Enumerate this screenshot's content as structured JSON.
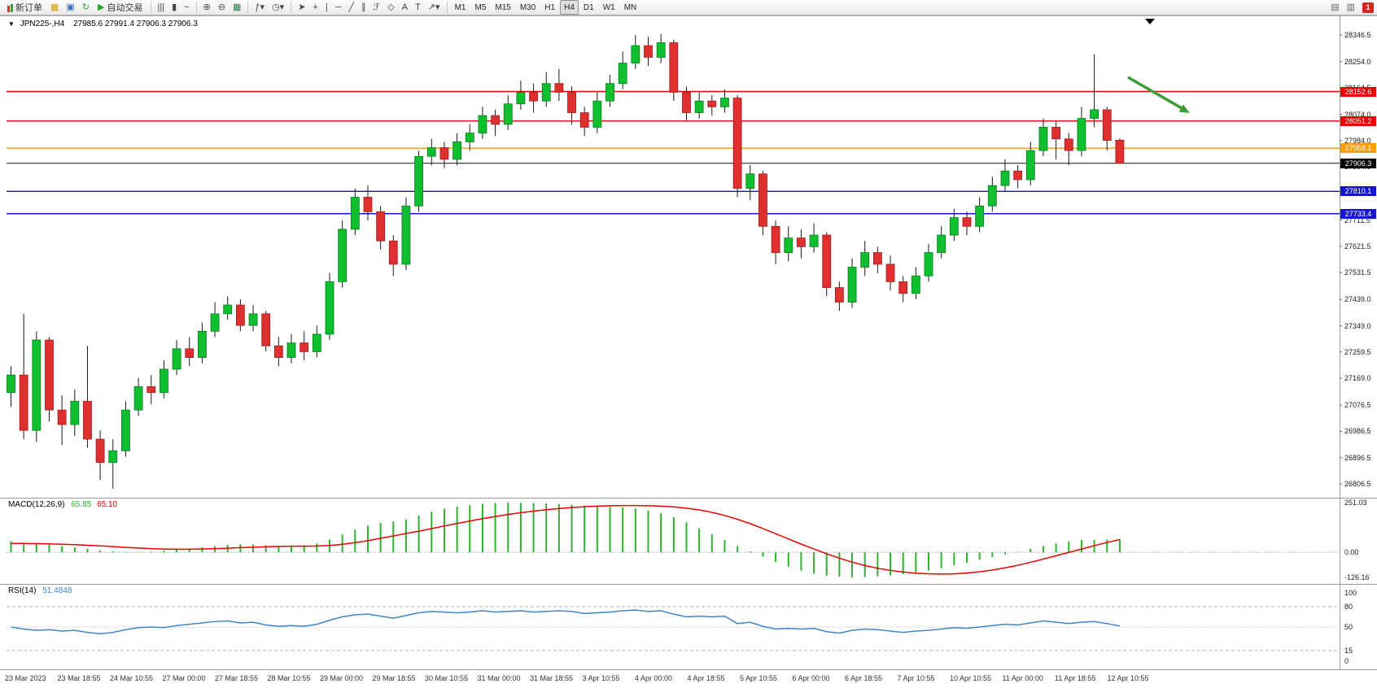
{
  "toolbar": {
    "new_order_label": "新订单",
    "auto_trading_label": "自动交易",
    "timeframes": [
      "M1",
      "M5",
      "M15",
      "M30",
      "H1",
      "H4",
      "D1",
      "W1",
      "MN"
    ],
    "active_timeframe": "H4",
    "notification_badge": "1",
    "left_icons": [
      {
        "name": "charts-icon",
        "glyph": "▦",
        "color": "#d89c00"
      },
      {
        "name": "profiles-icon",
        "glyph": "▣",
        "color": "#3e6fbd"
      },
      {
        "name": "refresh-icon",
        "glyph": "↻",
        "color": "#2fa32f"
      }
    ],
    "chart_type_icons": [
      {
        "name": "bar-chart-icon",
        "glyph": "|||",
        "color": "#444444"
      },
      {
        "name": "candlestick-chart-icon",
        "glyph": "▮",
        "color": "#444444"
      },
      {
        "name": "line-chart-icon",
        "glyph": "~",
        "color": "#444444"
      }
    ],
    "zoom_icons": [
      {
        "name": "zoom-in-icon",
        "glyph": "⊕",
        "color": "#444444"
      },
      {
        "name": "zoom-out-icon",
        "glyph": "⊖",
        "color": "#444444"
      },
      {
        "name": "tile-windows-icon",
        "glyph": "▦",
        "color": "#2f7d4f"
      }
    ],
    "dropdown_icons": [
      {
        "name": "indicators-dropdown",
        "glyph": "ƒ▾",
        "color": "#444444"
      },
      {
        "name": "periods-dropdown",
        "glyph": "◷▾",
        "color": "#444444"
      }
    ],
    "drawing_icons": [
      {
        "name": "cursor-icon",
        "glyph": "➤",
        "color": "#444444"
      },
      {
        "name": "crosshair-icon",
        "glyph": "+",
        "color": "#444444"
      },
      {
        "name": "vertical-line-icon",
        "glyph": "|",
        "color": "#444444"
      },
      {
        "name": "horizontal-line-icon",
        "glyph": "─",
        "color": "#444444"
      },
      {
        "name": "trendline-icon",
        "glyph": "╱",
        "color": "#444444"
      },
      {
        "name": "channel-icon",
        "glyph": "∥",
        "color": "#444444"
      },
      {
        "name": "fibonacci-icon",
        "glyph": "ℱ",
        "color": "#444444"
      },
      {
        "name": "shapes-icon",
        "glyph": "◇",
        "color": "#444444"
      },
      {
        "name": "text-icon",
        "glyph": "A",
        "color": "#444444"
      },
      {
        "name": "text-label-icon",
        "glyph": "T",
        "color": "#444444"
      },
      {
        "name": "arrows-icon",
        "glyph": "↗▾",
        "color": "#444444"
      }
    ],
    "right_icons": [
      {
        "name": "data-window-icon",
        "glyph": "▤",
        "color": "#666666"
      },
      {
        "name": "depth-of-market-icon",
        "glyph": "▥",
        "color": "#666666"
      }
    ]
  },
  "chart_data": {
    "type": "candlestick",
    "symbol": "JPN225-",
    "period": "H4",
    "title": "JPN225-,H4",
    "ohlc_text": "27985.6 27991.4 27906.3 27906.3",
    "last": {
      "open": 27985.6,
      "high": 27991.4,
      "low": 27906.3,
      "close": 27906.3
    },
    "bid_price": 27906.3,
    "ylim": [
      26759,
      28382
    ],
    "price_axis_labels": [
      "28346.5",
      "28254.0",
      "28164.5",
      "28074.0",
      "27984.0",
      "27894.0",
      "27801.5",
      "27711.5",
      "27621.5",
      "27531.5",
      "27439.0",
      "27349.0",
      "27259.5",
      "27169.0",
      "27076.5",
      "26986.5",
      "26896.5",
      "26806.5"
    ],
    "time_labels": [
      "23 Mar 2023",
      "23 Mar 18:55",
      "24 Mar 10:55",
      "27 Mar 00:00",
      "27 Mar 18:55",
      "28 Mar 10:55",
      "29 Mar 00:00",
      "29 Mar 18:55",
      "30 Mar 10:55",
      "31 Mar 00:00",
      "31 Mar 18:55",
      "3 Apr 10:55",
      "4 Apr 00:00",
      "4 Apr 18:55",
      "5 Apr 10:55",
      "6 Apr 00:00",
      "6 Apr 18:55",
      "7 Apr 10:55",
      "10 Apr 10:55",
      "11 Apr 00:00",
      "11 Apr 18:55",
      "12 Apr 10:55"
    ],
    "horizontal_lines": [
      {
        "price": 28152.6,
        "color": "#e80000",
        "style": "solid"
      },
      {
        "price": 28051.2,
        "color": "#e80000",
        "style": "solid"
      },
      {
        "price": 27958.1,
        "color": "#ff9c00",
        "style": "solid"
      },
      {
        "price": 27810.1,
        "color": "#1515d0",
        "style": "solid"
      },
      {
        "price": 27733.4,
        "color": "#1515d0",
        "style": "solid"
      }
    ],
    "colors": {
      "up": "#0fbf2f",
      "down": "#df2f2f",
      "wick": "#1a1a1a",
      "up_border": "#077d1d",
      "down_border": "#9c1f1f"
    },
    "candles": [
      [
        27120,
        27210,
        27070,
        27180
      ],
      [
        27180,
        27390,
        26960,
        26990
      ],
      [
        26990,
        27330,
        26950,
        27300
      ],
      [
        27300,
        27310,
        27020,
        27060
      ],
      [
        27060,
        27110,
        26940,
        27010
      ],
      [
        27010,
        27130,
        26970,
        27090
      ],
      [
        27090,
        27280,
        26930,
        26960
      ],
      [
        26960,
        26990,
        26820,
        26880
      ],
      [
        26880,
        26960,
        26790,
        26920
      ],
      [
        26920,
        27090,
        26900,
        27060
      ],
      [
        27060,
        27170,
        27040,
        27140
      ],
      [
        27140,
        27180,
        27080,
        27120
      ],
      [
        27120,
        27230,
        27100,
        27200
      ],
      [
        27200,
        27300,
        27180,
        27270
      ],
      [
        27270,
        27310,
        27210,
        27240
      ],
      [
        27240,
        27360,
        27220,
        27330
      ],
      [
        27330,
        27430,
        27310,
        27390
      ],
      [
        27390,
        27450,
        27370,
        27420
      ],
      [
        27420,
        27440,
        27330,
        27350
      ],
      [
        27350,
        27420,
        27330,
        27390
      ],
      [
        27390,
        27400,
        27260,
        27280
      ],
      [
        27280,
        27310,
        27210,
        27240
      ],
      [
        27240,
        27320,
        27220,
        27290
      ],
      [
        27290,
        27330,
        27230,
        27260
      ],
      [
        27260,
        27350,
        27240,
        27320
      ],
      [
        27320,
        27530,
        27300,
        27500
      ],
      [
        27500,
        27710,
        27480,
        27680
      ],
      [
        27680,
        27820,
        27660,
        27790
      ],
      [
        27790,
        27830,
        27710,
        27740
      ],
      [
        27740,
        27760,
        27610,
        27640
      ],
      [
        27640,
        27660,
        27520,
        27560
      ],
      [
        27560,
        27790,
        27540,
        27760
      ],
      [
        27760,
        27950,
        27740,
        27930
      ],
      [
        27930,
        27990,
        27900,
        27960
      ],
      [
        27960,
        27980,
        27890,
        27920
      ],
      [
        27920,
        28010,
        27900,
        27980
      ],
      [
        27980,
        28040,
        27950,
        28010
      ],
      [
        28010,
        28100,
        27990,
        28070
      ],
      [
        28070,
        28090,
        28000,
        28040
      ],
      [
        28040,
        28140,
        28020,
        28110
      ],
      [
        28110,
        28190,
        28090,
        28150
      ],
      [
        28150,
        28180,
        28080,
        28120
      ],
      [
        28120,
        28220,
        28100,
        28180
      ],
      [
        28180,
        28230,
        28120,
        28150
      ],
      [
        28150,
        28170,
        28040,
        28080
      ],
      [
        28080,
        28100,
        28000,
        28030
      ],
      [
        28030,
        28150,
        28010,
        28120
      ],
      [
        28120,
        28210,
        28100,
        28180
      ],
      [
        28180,
        28290,
        28160,
        28250
      ],
      [
        28250,
        28346,
        28230,
        28310
      ],
      [
        28310,
        28340,
        28240,
        28270
      ],
      [
        28270,
        28350,
        28250,
        28320
      ],
      [
        28320,
        28330,
        28120,
        28150
      ],
      [
        28150,
        28170,
        28050,
        28080
      ],
      [
        28080,
        28150,
        28060,
        28120
      ],
      [
        28120,
        28140,
        28070,
        28100
      ],
      [
        28100,
        28160,
        28080,
        28130
      ],
      [
        28130,
        28140,
        27790,
        27820
      ],
      [
        27820,
        27900,
        27780,
        27870
      ],
      [
        27870,
        27880,
        27660,
        27690
      ],
      [
        27690,
        27710,
        27560,
        27600
      ],
      [
        27600,
        27690,
        27570,
        27650
      ],
      [
        27650,
        27680,
        27580,
        27620
      ],
      [
        27620,
        27700,
        27600,
        27660
      ],
      [
        27660,
        27670,
        27450,
        27480
      ],
      [
        27480,
        27500,
        27400,
        27430
      ],
      [
        27430,
        27580,
        27410,
        27550
      ],
      [
        27550,
        27640,
        27520,
        27600
      ],
      [
        27600,
        27620,
        27530,
        27560
      ],
      [
        27560,
        27590,
        27470,
        27500
      ],
      [
        27500,
        27520,
        27430,
        27460
      ],
      [
        27460,
        27550,
        27440,
        27520
      ],
      [
        27520,
        27630,
        27500,
        27600
      ],
      [
        27600,
        27690,
        27580,
        27660
      ],
      [
        27660,
        27750,
        27640,
        27720
      ],
      [
        27720,
        27740,
        27660,
        27690
      ],
      [
        27690,
        27790,
        27670,
        27760
      ],
      [
        27760,
        27860,
        27740,
        27830
      ],
      [
        27830,
        27920,
        27810,
        27880
      ],
      [
        27880,
        27900,
        27820,
        27850
      ],
      [
        27850,
        27980,
        27830,
        27950
      ],
      [
        27950,
        28060,
        27930,
        28030
      ],
      [
        28030,
        28050,
        27920,
        27990
      ],
      [
        27990,
        28010,
        27900,
        27950
      ],
      [
        27950,
        28100,
        27930,
        28060
      ],
      [
        28060,
        28280,
        28030,
        28090
      ],
      [
        28090,
        28100,
        27950,
        27985
      ],
      [
        27985.6,
        27991.4,
        27906.3,
        27906.3
      ]
    ],
    "indicators": {
      "macd": {
        "label": "MACD(12,26,9)",
        "main_value": "65.85",
        "signal_value": "65.10",
        "axis_labels": [
          "251.03",
          "0.00",
          "-126.16"
        ],
        "hist_color": "#2fb32f",
        "signal_color": "#ee0000",
        "histogram": [
          55,
          50,
          45,
          40,
          32,
          25,
          18,
          10,
          5,
          3,
          2,
          4,
          8,
          14,
          20,
          26,
          32,
          38,
          42,
          40,
          36,
          32,
          30,
          34,
          45,
          65,
          90,
          115,
          135,
          148,
          155,
          165,
          185,
          205,
          220,
          230,
          238,
          245,
          249,
          251,
          250,
          249,
          247,
          244,
          240,
          236,
          232,
          229,
          226,
          221,
          212,
          198,
          178,
          152,
          122,
          92,
          62,
          32,
          5,
          -22,
          -48,
          -72,
          -92,
          -107,
          -117,
          -123,
          -126,
          -125,
          -121,
          -116,
          -110,
          -102,
          -92,
          -80,
          -66,
          -52,
          -38,
          -24,
          -10,
          4,
          18,
          32,
          45,
          55,
          62,
          64,
          65,
          65.85
        ],
        "signal": [
          45,
          45,
          44,
          43,
          41,
          39,
          36,
          33,
          29,
          25,
          22,
          19,
          17,
          16,
          16,
          17,
          19,
          21,
          24,
          26,
          28,
          30,
          31,
          31,
          32,
          35,
          41,
          49,
          59,
          71,
          83,
          95,
          107,
          120,
          133,
          146,
          158,
          170,
          181,
          191,
          200,
          208,
          215,
          221,
          226,
          230,
          233,
          235,
          236,
          236,
          235,
          233,
          229,
          223,
          214,
          202,
          186,
          167,
          145,
          120,
          94,
          68,
          42,
          17,
          -7,
          -29,
          -49,
          -66,
          -80,
          -91,
          -99,
          -105,
          -108,
          -109,
          -108,
          -104,
          -98,
          -89,
          -78,
          -65,
          -50,
          -34,
          -17,
          0,
          17,
          34,
          50,
          65.1
        ]
      },
      "rsi": {
        "label": "RSI(14)",
        "value": "51.4848",
        "axis_labels": [
          "100",
          "80",
          "50",
          "15",
          "0"
        ],
        "levels": [
          80,
          50,
          15
        ],
        "color": "#3f86c8",
        "series": [
          50,
          47,
          45,
          46,
          44,
          45,
          42,
          40,
          42,
          46,
          49,
          50,
          49,
          52,
          54,
          56,
          58,
          59,
          56,
          57,
          53,
          51,
          52,
          51,
          54,
          60,
          65,
          68,
          69,
          66,
          63,
          67,
          71,
          73,
          72,
          71,
          72,
          74,
          72,
          73,
          74,
          72,
          73,
          74,
          73,
          70,
          71,
          72,
          74,
          75,
          73,
          74,
          69,
          65,
          66,
          65,
          66,
          55,
          57,
          51,
          47,
          48,
          47,
          48,
          43,
          41,
          45,
          47,
          46,
          44,
          42,
          44,
          45,
          47,
          49,
          48,
          50,
          52,
          54,
          53,
          56,
          59,
          57,
          55,
          57,
          58,
          55,
          51.4848
        ]
      }
    },
    "annotation": {
      "type": "arrow",
      "color": "#3c9e37"
    }
  }
}
